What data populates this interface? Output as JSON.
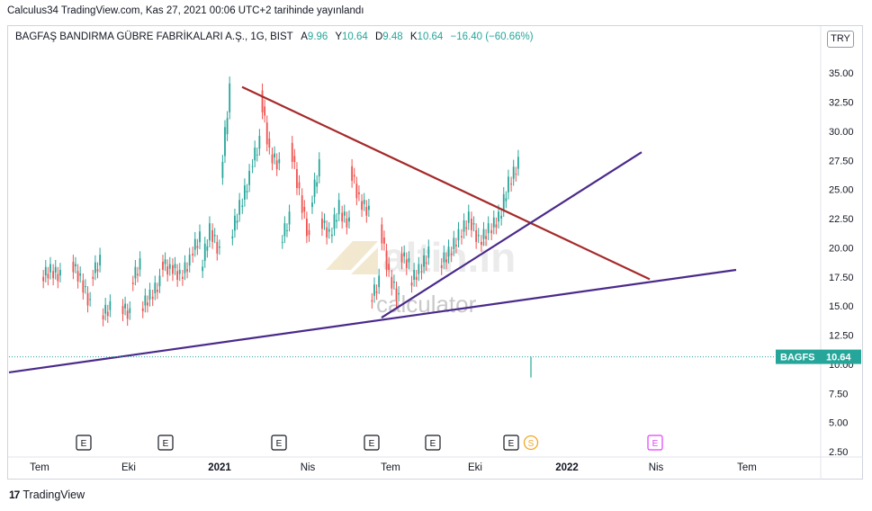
{
  "publish_line": "Calculus34 TradingView.com, Kas 27, 2021 00:06 UTC+2 tarihinde yayınlandı",
  "legend": {
    "symbol": "BAGFAŞ BANDIRMA GÜBRE FABRİKALARI A.Ş., 1G, BIST",
    "open_label": "A",
    "open": "9.96",
    "high_label": "Y",
    "high": "10.64",
    "low_label": "D",
    "low": "9.48",
    "close_label": "K",
    "close": "10.64",
    "change": "−16.40 (−60.66%)"
  },
  "currency": "TRY",
  "price_tag": {
    "ticker": "BAGFS",
    "value": "10.64"
  },
  "watermark": {
    "brand": "altin.in",
    "sub": "calculator"
  },
  "footer": {
    "logo": "17",
    "brand": "TradingView"
  },
  "colors": {
    "up": "#26a69a",
    "down": "#ef5350",
    "red_line": "#a52a2a",
    "purple_line": "#4a2a8a",
    "tag": "#26a69a"
  },
  "chart_data": {
    "type": "candlestick",
    "y_axis": {
      "ticks": [
        "2.50",
        "5.00",
        "7.50",
        "10.00",
        "12.50",
        "15.00",
        "17.50",
        "20.00",
        "22.50",
        "25.00",
        "27.50",
        "30.00",
        "32.50",
        "35.00"
      ],
      "range": [
        2.5,
        37.5
      ]
    },
    "x_axis": {
      "labels": [
        "Tem",
        "Eki",
        "2021",
        "Nis",
        "Tem",
        "Eki",
        "2022",
        "Nis",
        "Tem"
      ],
      "bold": [
        "2021",
        "2022"
      ]
    },
    "price_series": [
      [
        "2020-07",
        18.0
      ],
      [
        "2020-07",
        17.5
      ],
      [
        "2020-08",
        18.8
      ],
      [
        "2020-08",
        17.2
      ],
      [
        "2020-08",
        15.0
      ],
      [
        "2020-09",
        14.2
      ],
      [
        "2020-09",
        14.8
      ],
      [
        "2020-10",
        15.8
      ],
      [
        "2020-10",
        17.0
      ],
      [
        "2020-10",
        18.5
      ],
      [
        "2020-11",
        17.5
      ],
      [
        "2020-11",
        18.8
      ],
      [
        "2020-11",
        18.0
      ],
      [
        "2020-12",
        21.5
      ],
      [
        "2020-12",
        19.5
      ],
      [
        "2020-12",
        20.8
      ],
      [
        "2021-01",
        23.5
      ],
      [
        "2021-01",
        26.0
      ],
      [
        "2021-01",
        33.5
      ],
      [
        "2021-02",
        28.0
      ],
      [
        "2021-02",
        27.0
      ],
      [
        "2021-02",
        29.0
      ],
      [
        "2021-03",
        24.5
      ],
      [
        "2021-03",
        20.5
      ],
      [
        "2021-03",
        22.5
      ],
      [
        "2021-04",
        21.0
      ],
      [
        "2021-04",
        23.5
      ],
      [
        "2021-04",
        27.0
      ],
      [
        "2021-05",
        24.0
      ],
      [
        "2021-05",
        23.0
      ],
      [
        "2021-05",
        22.0
      ],
      [
        "2021-06",
        17.5
      ],
      [
        "2021-06",
        15.5
      ],
      [
        "2021-06",
        17.0
      ],
      [
        "2021-07",
        18.0
      ],
      [
        "2021-07",
        19.5
      ],
      [
        "2021-07",
        18.5
      ],
      [
        "2021-08",
        19.5
      ],
      [
        "2021-08",
        21.0
      ],
      [
        "2021-09",
        22.5
      ],
      [
        "2021-09",
        20.5
      ],
      [
        "2021-09",
        21.5
      ],
      [
        "2021-10",
        22.5
      ],
      [
        "2021-10",
        25.5
      ],
      [
        "2021-10",
        27.2
      ]
    ],
    "last_bar": {
      "open": 9.96,
      "high": 10.64,
      "low": 9.48,
      "close": 10.64
    },
    "trendlines": [
      {
        "name": "descending resistance",
        "from": [
          "2021-01",
          33.8
        ],
        "to": [
          "2021-12",
          17.3
        ],
        "color": "#a52a2a"
      },
      {
        "name": "rising support (short)",
        "from": [
          "2021-06",
          14.0
        ],
        "to": [
          "2021-11",
          28.2
        ],
        "color": "#4a2a8a"
      },
      {
        "name": "rising support (long)",
        "from": [
          "2020-06",
          9.3
        ],
        "to": [
          "2022-03",
          18.1
        ],
        "color": "#4a2a8a"
      }
    ],
    "event_markers": [
      "E",
      "E",
      "E",
      "E",
      "E",
      "E",
      "S",
      "E"
    ]
  }
}
